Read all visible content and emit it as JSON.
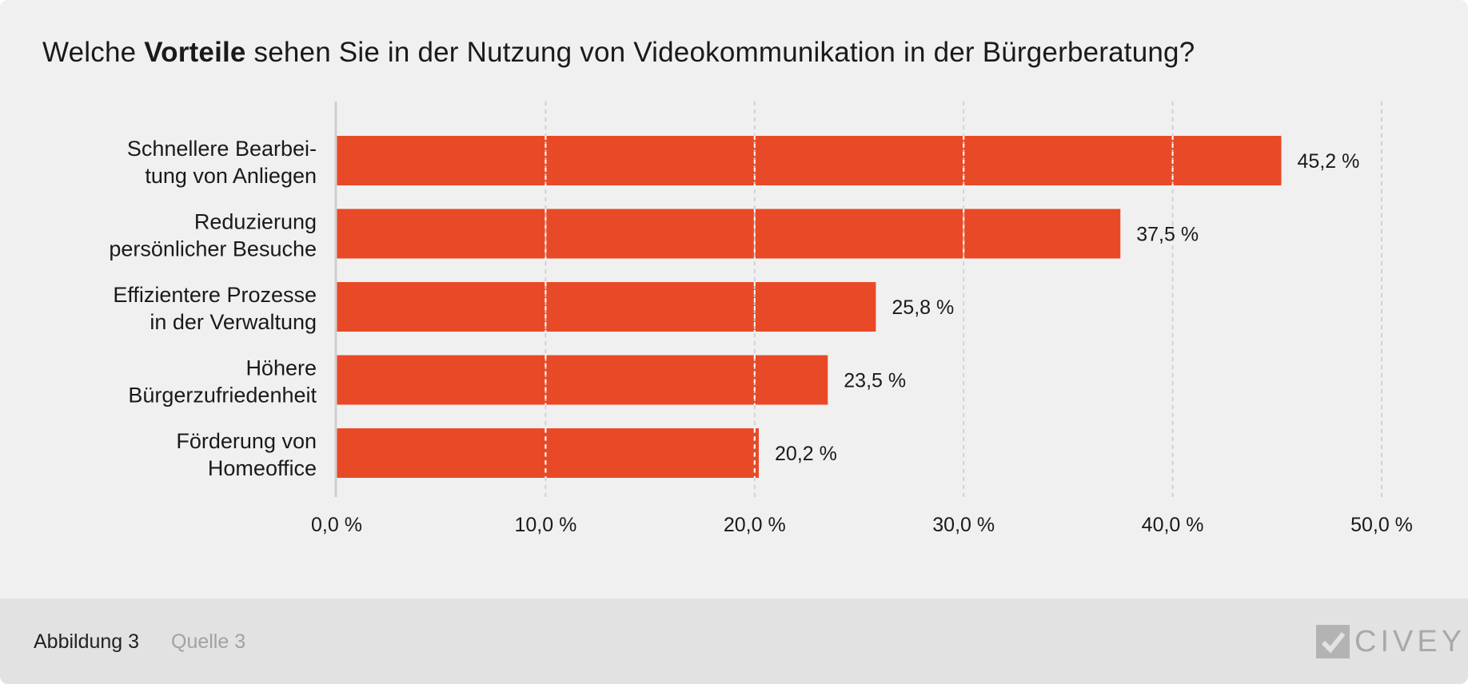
{
  "title": {
    "prefix": "Welche ",
    "emphasis": "Vorteile",
    "suffix": " sehen Sie in der Nutzung von Videokommunikation in der Bürgerberatung?"
  },
  "chart_data": {
    "type": "bar",
    "orientation": "horizontal",
    "title": "Welche Vorteile sehen Sie in der Nutzung von Videokommunikation in der Bürgerberatung?",
    "categories": [
      [
        "Schnellere Bearbei-",
        "tung von Anliegen"
      ],
      [
        "Reduzierung",
        "persönlicher Besuche"
      ],
      [
        "Effizientere Prozesse",
        "in der Verwaltung"
      ],
      [
        "Höhere",
        "Bürgerzufriedenheit"
      ],
      [
        "Förderung von",
        "Homeoffice"
      ]
    ],
    "values": [
      45.2,
      37.5,
      25.8,
      23.5,
      20.2
    ],
    "value_labels": [
      "45,2 %",
      "37,5 %",
      "25,8 %",
      "23,5 %",
      "20,2 %"
    ],
    "xlim": [
      0,
      50
    ],
    "ticks": [
      0,
      10,
      20,
      30,
      40,
      50
    ],
    "tick_labels": [
      "0,0 %",
      "10,0 %",
      "20,0 %",
      "30,0 %",
      "40,0 %",
      "50,0 %"
    ],
    "xlabel": "",
    "ylabel": "",
    "grid": true,
    "bar_color": "#e84a27",
    "grid_color": "#cccccc"
  },
  "footer": {
    "figure_label": "Abbildung 3",
    "source_label": "Quelle 3",
    "logo_text": "CIVEY"
  }
}
